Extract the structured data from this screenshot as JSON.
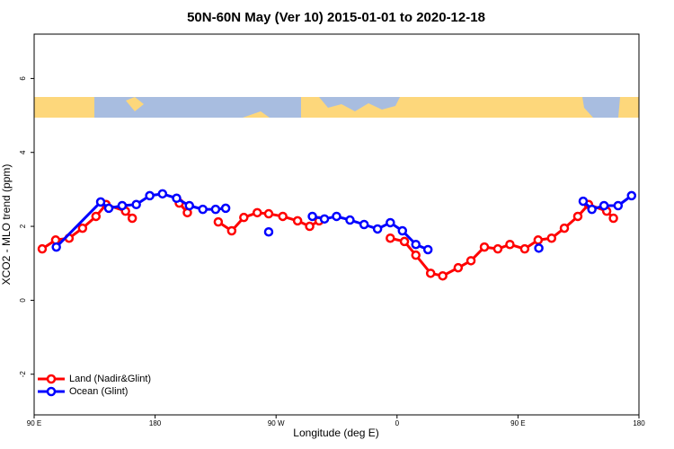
{
  "chart_data": {
    "type": "line",
    "title": "50N-60N May (Ver 10)   2015-01-01 to 2020-12-18",
    "x_label": "Longitude (deg E)",
    "y_label": "XCO2 - MLO trend (ppm)",
    "xlim": [
      90,
      540
    ],
    "xticks": [
      {
        "value": 90,
        "label": "90 E"
      },
      180,
      {
        "value": 270,
        "label": "90 W"
      },
      {
        "value": 360,
        "label": "0"
      },
      {
        "value": 450,
        "label": "90 E"
      },
      {
        "value": 540,
        "label": "180"
      }
    ],
    "ylim": [
      -3.1,
      7.2
    ],
    "yticks": [
      -2,
      0,
      2,
      4,
      6
    ],
    "legend": "bottom-left",
    "series": [
      {
        "name": "Land (Nadir&Glint)",
        "color": "#ff0000",
        "x": [
          96,
          106,
          116,
          126,
          136,
          143.5,
          158,
          163,
          null,
          198,
          204,
          null,
          227,
          237,
          246,
          256,
          264.5,
          275,
          286,
          295,
          302,
          null,
          355,
          365.5,
          374,
          385,
          394,
          405.5,
          415,
          425,
          435,
          444,
          455,
          465,
          475,
          484.5,
          494.5,
          502.5,
          516,
          521
        ],
        "values": [
          1.39,
          1.63,
          1.68,
          1.95,
          2.27,
          2.59,
          2.41,
          2.22,
          null,
          2.63,
          2.37,
          null,
          2.12,
          1.88,
          2.24,
          2.37,
          2.34,
          2.27,
          2.15,
          2.0,
          2.15,
          null,
          1.68,
          1.59,
          1.22,
          0.73,
          0.66,
          0.88,
          1.07,
          1.44,
          1.39,
          1.51,
          1.39,
          1.63,
          1.68,
          1.95,
          2.27,
          2.59,
          2.41,
          2.22
        ]
      },
      {
        "name": "Ocean (Glint)",
        "color": "#0000ff",
        "x": [
          106.5,
          139.5,
          145.5,
          155.5,
          166,
          176,
          185.5,
          196,
          205.5,
          215.5,
          225,
          232.5,
          null,
          264.5,
          null,
          297,
          306,
          315,
          325,
          335.5,
          345.5,
          355,
          364,
          374,
          383,
          null,
          465.5,
          null,
          498.5,
          505,
          514,
          524.5,
          534.5
        ],
        "values": [
          1.44,
          2.66,
          2.49,
          2.56,
          2.59,
          2.83,
          2.88,
          2.76,
          2.56,
          2.46,
          2.46,
          2.49,
          null,
          1.85,
          null,
          2.27,
          2.2,
          2.27,
          2.17,
          2.05,
          1.93,
          2.1,
          1.88,
          1.51,
          1.37,
          null,
          1.41,
          null,
          2.68,
          2.46,
          2.56,
          2.56,
          2.83
        ]
      }
    ]
  }
}
